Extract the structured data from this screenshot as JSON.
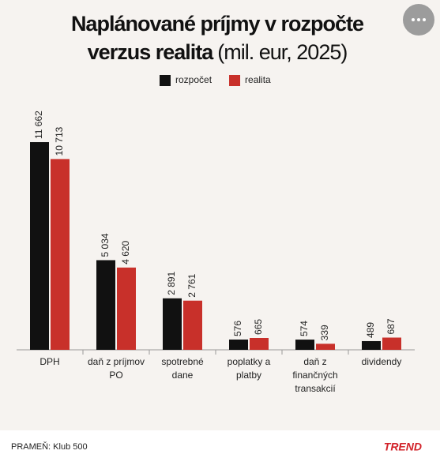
{
  "chart_data": {
    "type": "bar",
    "title": "Naplánované príjmy v rozpočte",
    "title_line2": "verzus realita",
    "title_note": "(mil. eur, 2025)",
    "categories": [
      "DPH",
      "daň z príjmov\nPO",
      "spotrebné\ndane",
      "poplatky a\nplatby",
      "daň z\nfinančných\ntransakcií",
      "dividendy"
    ],
    "series": [
      {
        "name": "rozpočet",
        "color": "#111111",
        "values": [
          11662,
          5034,
          2891,
          576,
          574,
          489
        ],
        "value_labels": [
          "11 662",
          "5 034",
          "2 891",
          "576",
          "574",
          "489"
        ]
      },
      {
        "name": "realita",
        "color": "#c8302a",
        "values": [
          10713,
          4620,
          2761,
          665,
          339,
          687
        ],
        "value_labels": [
          "10 713",
          "4 620",
          "2 761",
          "665",
          "339",
          "687"
        ]
      }
    ],
    "source": "PRAMEŇ: Klub 500",
    "brand": "TREND"
  }
}
